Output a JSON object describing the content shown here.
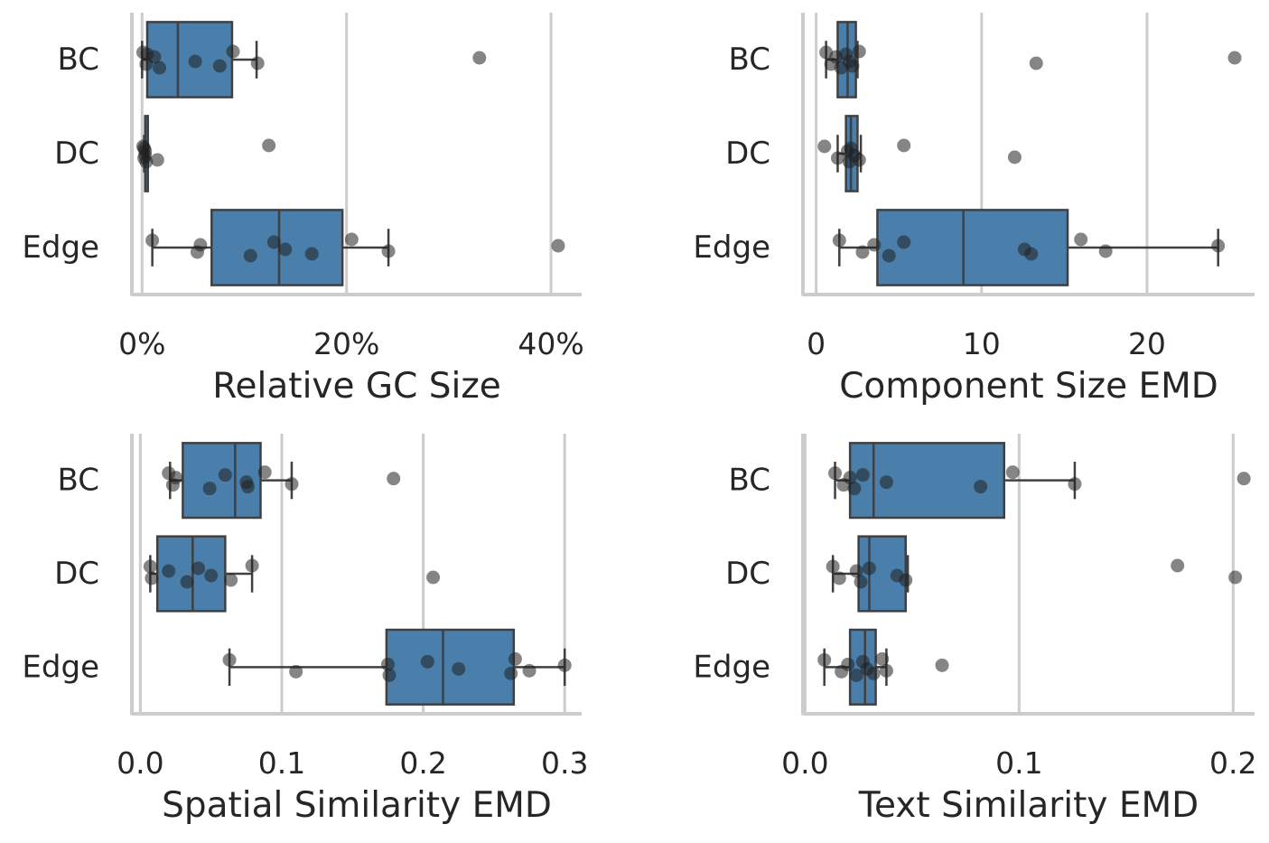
{
  "figure": {
    "box_color": "#4a7eab",
    "box_edge_color": "#404040",
    "point_color": "#202020",
    "grid_color": "#cccccc",
    "axis_color": "#cccccc"
  },
  "chart_data": [
    {
      "type": "box",
      "xlabel": "Relative GC Size",
      "xlim": [
        -1,
        43
      ],
      "xticks": [
        0,
        20,
        40
      ],
      "xtick_labels": [
        "0%",
        "20%",
        "40%"
      ],
      "categories": [
        "BC",
        "DC",
        "Edge"
      ],
      "boxes": [
        {
          "category": "BC",
          "whisker_low": 0.0,
          "q1": 0.5,
          "median": 3.5,
          "q3": 8.8,
          "whisker_high": 11.2
        },
        {
          "category": "DC",
          "whisker_low": 0.2,
          "q1": 0.3,
          "median": 0.3,
          "q3": 0.4,
          "whisker_high": 0.5
        },
        {
          "category": "Edge",
          "whisker_low": 1.0,
          "q1": 6.8,
          "median": 13.4,
          "q3": 19.6,
          "whisker_high": 24.1
        }
      ],
      "points": [
        {
          "category": "BC",
          "values": [
            0.1,
            0.4,
            1.2,
            1.7,
            0.5,
            5.2,
            7.6,
            8.9,
            11.3,
            33.0
          ]
        },
        {
          "category": "DC",
          "values": [
            0.1,
            0.2,
            0.3,
            0.4,
            0.2,
            0.3,
            1.5,
            12.4
          ]
        },
        {
          "category": "Edge",
          "values": [
            1.0,
            5.4,
            5.7,
            10.6,
            12.9,
            14.0,
            16.6,
            20.5,
            24.1,
            40.7
          ]
        }
      ]
    },
    {
      "type": "box",
      "xlabel": "Component Size EMD",
      "xlim": [
        -0.8,
        26.5
      ],
      "xticks": [
        0,
        10,
        20
      ],
      "xtick_labels": [
        "0",
        "10",
        "20"
      ],
      "categories": [
        "BC",
        "DC",
        "Edge"
      ],
      "boxes": [
        {
          "category": "BC",
          "whisker_low": 0.6,
          "q1": 1.3,
          "median": 1.9,
          "q3": 2.4,
          "whisker_high": 2.5
        },
        {
          "category": "DC",
          "whisker_low": 1.3,
          "q1": 1.8,
          "median": 2.1,
          "q3": 2.5,
          "whisker_high": 2.7
        },
        {
          "category": "Edge",
          "whisker_low": 1.4,
          "q1": 3.7,
          "median": 8.9,
          "q3": 15.2,
          "whisker_high": 24.3
        }
      ],
      "points": [
        {
          "category": "BC",
          "values": [
            0.6,
            0.9,
            1.2,
            1.5,
            1.8,
            2.0,
            2.2,
            2.6,
            13.3,
            25.3
          ]
        },
        {
          "category": "DC",
          "values": [
            0.5,
            1.3,
            1.9,
            2.0,
            2.1,
            2.3,
            2.6,
            5.3,
            12.0
          ]
        },
        {
          "category": "Edge",
          "values": [
            1.4,
            2.8,
            3.5,
            4.4,
            5.3,
            12.6,
            13.0,
            16.0,
            17.5,
            24.3
          ]
        }
      ]
    },
    {
      "type": "box",
      "xlabel": "Spatial Similarity EMD",
      "xlim": [
        -0.006,
        0.312
      ],
      "xticks": [
        0.0,
        0.1,
        0.2,
        0.3
      ],
      "xtick_labels": [
        "0.0",
        "0.1",
        "0.2",
        "0.3"
      ],
      "categories": [
        "BC",
        "DC",
        "Edge"
      ],
      "boxes": [
        {
          "category": "BC",
          "whisker_low": 0.021,
          "q1": 0.03,
          "median": 0.067,
          "q3": 0.085,
          "whisker_high": 0.107
        },
        {
          "category": "DC",
          "whisker_low": 0.007,
          "q1": 0.012,
          "median": 0.037,
          "q3": 0.06,
          "whisker_high": 0.079
        },
        {
          "category": "Edge",
          "whisker_low": 0.063,
          "q1": 0.174,
          "median": 0.214,
          "q3": 0.264,
          "whisker_high": 0.3
        }
      ],
      "points": [
        {
          "category": "BC",
          "values": [
            0.02,
            0.023,
            0.025,
            0.049,
            0.06,
            0.075,
            0.076,
            0.088,
            0.107,
            0.179
          ]
        },
        {
          "category": "DC",
          "values": [
            0.007,
            0.008,
            0.02,
            0.033,
            0.041,
            0.05,
            0.064,
            0.079,
            0.207
          ]
        },
        {
          "category": "Edge",
          "values": [
            0.063,
            0.11,
            0.175,
            0.176,
            0.203,
            0.225,
            0.262,
            0.265,
            0.275,
            0.3
          ]
        }
      ]
    },
    {
      "type": "box",
      "xlabel": "Text Similarity EMD",
      "xlim": [
        -0.001,
        0.21
      ],
      "xticks": [
        0.0,
        0.1,
        0.2
      ],
      "xtick_labels": [
        "0.0",
        "0.1",
        "0.2"
      ],
      "categories": [
        "BC",
        "DC",
        "Edge"
      ],
      "boxes": [
        {
          "category": "BC",
          "whisker_low": 0.014,
          "q1": 0.021,
          "median": 0.032,
          "q3": 0.093,
          "whisker_high": 0.126
        },
        {
          "category": "DC",
          "whisker_low": 0.013,
          "q1": 0.025,
          "median": 0.03,
          "q3": 0.047,
          "whisker_high": 0.048
        },
        {
          "category": "Edge",
          "whisker_low": 0.009,
          "q1": 0.021,
          "median": 0.028,
          "q3": 0.033,
          "whisker_high": 0.038
        }
      ],
      "points": [
        {
          "category": "BC",
          "values": [
            0.014,
            0.018,
            0.021,
            0.023,
            0.027,
            0.038,
            0.082,
            0.097,
            0.126,
            0.205
          ]
        },
        {
          "category": "DC",
          "values": [
            0.013,
            0.016,
            0.024,
            0.026,
            0.03,
            0.043,
            0.047,
            0.174,
            0.201
          ]
        },
        {
          "category": "Edge",
          "values": [
            0.009,
            0.017,
            0.02,
            0.024,
            0.027,
            0.029,
            0.032,
            0.036,
            0.038,
            0.064
          ]
        }
      ]
    }
  ]
}
